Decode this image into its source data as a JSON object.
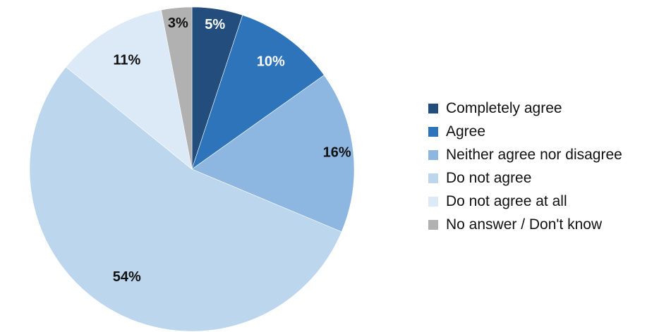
{
  "chart_data": {
    "type": "pie",
    "start": "top",
    "direction": "clockwise",
    "slices": [
      {
        "label": "Completely agree",
        "value": 5,
        "value_label": "5%",
        "color": "#234D7C",
        "label_color": "#FFFFFF"
      },
      {
        "label": "Agree",
        "value": 10,
        "value_label": "10%",
        "color": "#2E74BB",
        "label_color": "#FFFFFF"
      },
      {
        "label": "Neither agree nor disagree",
        "value": 16,
        "value_label": "16%",
        "color": "#8DB7E0",
        "label_color": "#111111"
      },
      {
        "label": "Do not agree",
        "value": 54,
        "value_label": "54%",
        "color": "#BCD6EE",
        "label_color": "#111111"
      },
      {
        "label": "Do not agree at all",
        "value": 11,
        "value_label": "11%",
        "color": "#DCE9F6",
        "label_color": "#111111"
      },
      {
        "label": "No answer / Don't know",
        "value": 3,
        "value_label": "3%",
        "color": "#B1B1B1",
        "label_color": "#111111"
      }
    ],
    "legend": {
      "position": "right",
      "entries": [
        "Completely agree",
        "Agree",
        "Neither agree nor disagree",
        "Do not agree",
        "Do not agree at all",
        "No answer / Don't know"
      ]
    }
  }
}
